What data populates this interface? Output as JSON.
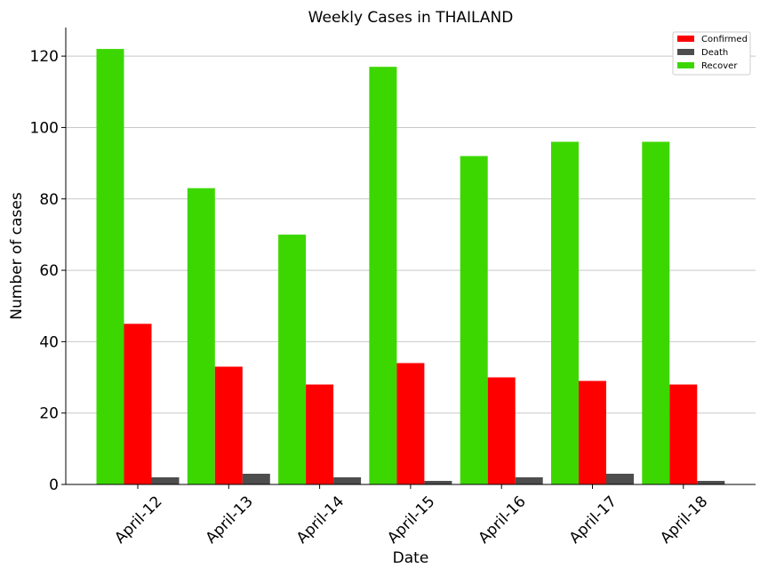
{
  "chart_data": {
    "type": "bar",
    "title": "Weekly Cases in THAILAND",
    "xlabel": "Date",
    "ylabel": "Number of cases",
    "categories": [
      "April-12",
      "April-13",
      "April-14",
      "April-15",
      "April-16",
      "April-17",
      "April-18"
    ],
    "series": [
      {
        "name": "Recover",
        "color": "#3cd700",
        "values": [
          122,
          83,
          70,
          117,
          92,
          96,
          96
        ]
      },
      {
        "name": "Confirmed",
        "color": "#ff0000",
        "values": [
          45,
          33,
          28,
          34,
          30,
          29,
          28
        ]
      },
      {
        "name": "Death",
        "color": "#4d4d4d",
        "values": [
          2,
          3,
          2,
          1,
          2,
          3,
          1
        ]
      }
    ],
    "legend_order": [
      "Confirmed",
      "Death",
      "Recover"
    ],
    "ylim": [
      0,
      128
    ],
    "yticks": [
      0,
      20,
      40,
      60,
      80,
      100,
      120
    ],
    "grid": "horizontal",
    "legend_position": "top-right"
  }
}
